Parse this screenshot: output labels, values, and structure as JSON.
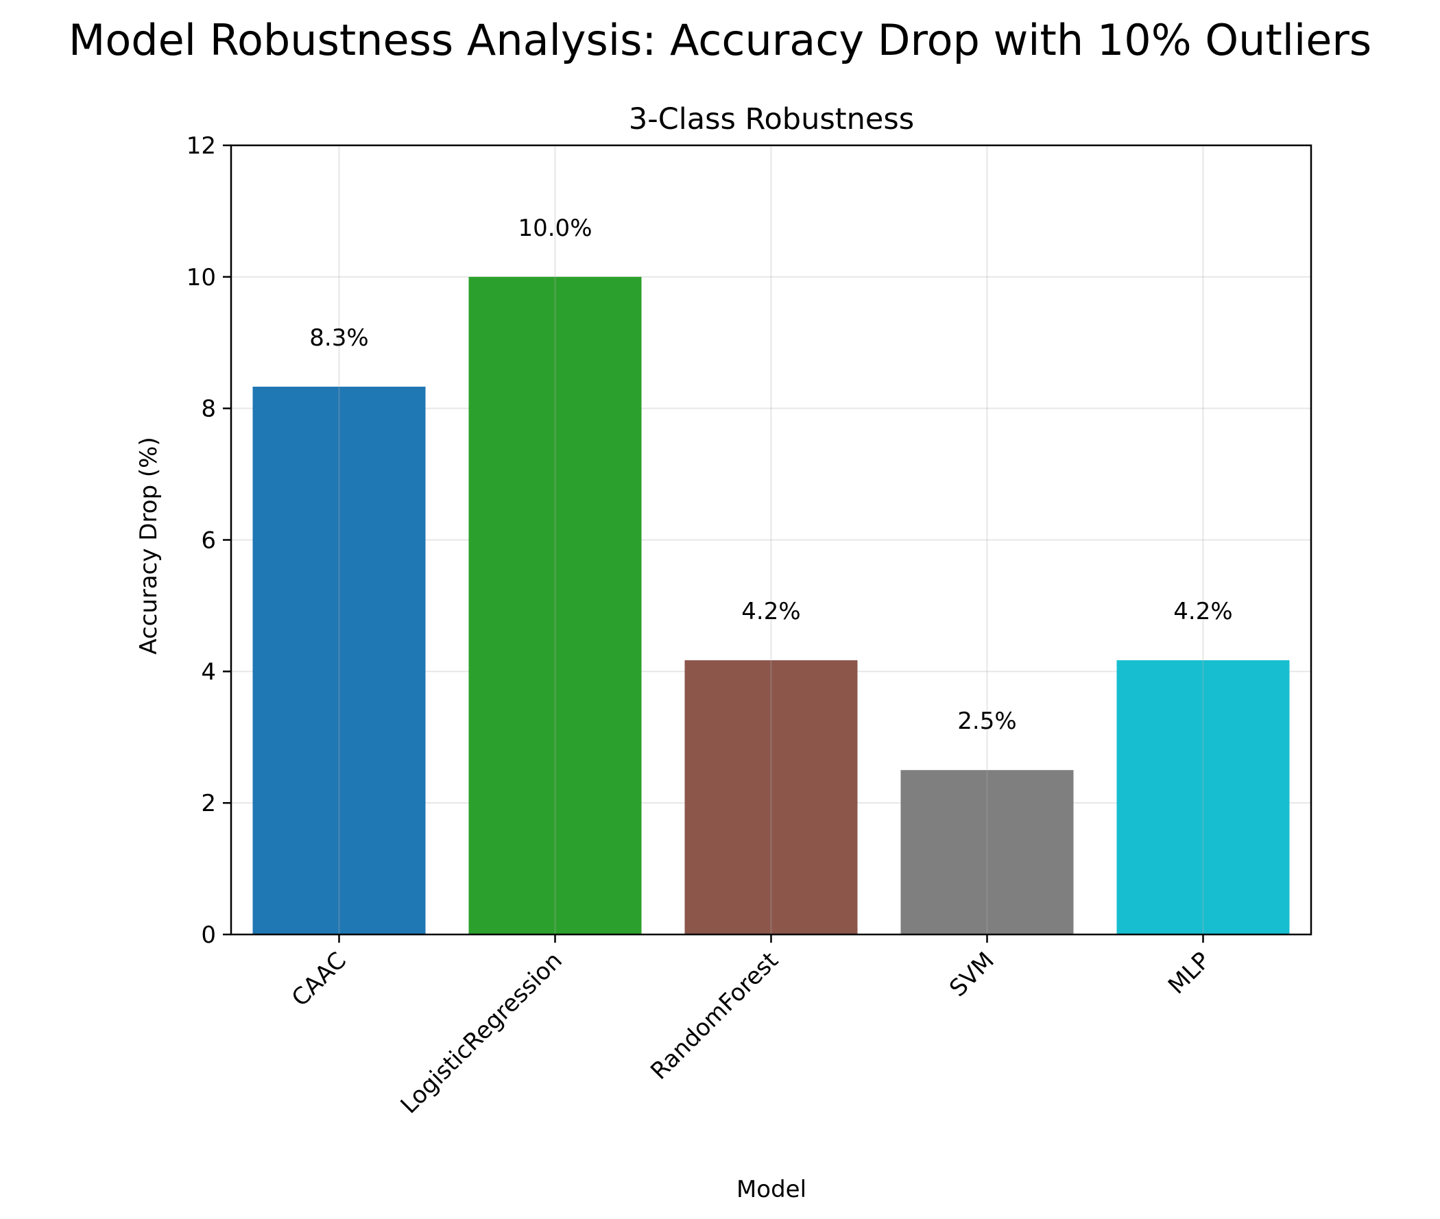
{
  "figure": {
    "suptitle": "Model Robustness Analysis: Accuracy Drop with 10% Outliers"
  },
  "chart_data": {
    "type": "bar",
    "title": "3-Class Robustness",
    "xlabel": "Model",
    "ylabel": "Accuracy Drop (%)",
    "categories": [
      "CAAC",
      "LogisticRegression",
      "RandomForest",
      "SVM",
      "MLP"
    ],
    "values": [
      8.33,
      10.0,
      4.17,
      2.5,
      4.17
    ],
    "data_labels": [
      "8.3%",
      "10.0%",
      "4.2%",
      "2.5%",
      "4.2%"
    ],
    "colors": [
      "#1f77b4",
      "#2ca02c",
      "#8c564b",
      "#7f7f7f",
      "#17becf"
    ],
    "ylim": [
      0,
      12
    ],
    "yticks": [
      0,
      2,
      4,
      6,
      8,
      10,
      12
    ],
    "grid": true,
    "xtick_rotation": 45
  }
}
